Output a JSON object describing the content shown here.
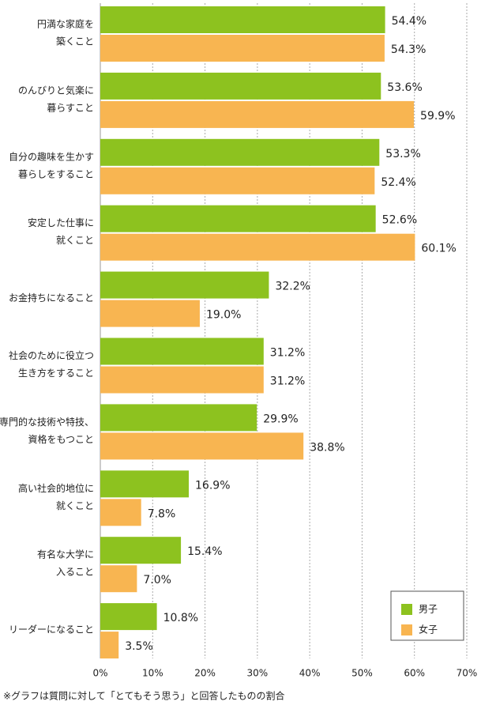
{
  "chart_data": {
    "type": "bar",
    "orientation": "horizontal",
    "categories": [
      [
        "円満な家庭を",
        "築くこと"
      ],
      [
        "のんびりと気楽に",
        "暮らすこと"
      ],
      [
        "自分の趣味を生かす",
        "暮らしをすること"
      ],
      [
        "安定した仕事に",
        "就くこと"
      ],
      [
        "お金持ちになること"
      ],
      [
        "社会のために役立つ",
        "生き方をすること"
      ],
      [
        "専門的な技術や特技、",
        "資格をもつこと"
      ],
      [
        "高い社会的地位に",
        "就くこと"
      ],
      [
        "有名な大学に",
        "入ること"
      ],
      [
        "リーダーになること"
      ]
    ],
    "series": [
      {
        "name": "男子",
        "color": "#8dc21f",
        "values": [
          54.4,
          53.6,
          53.3,
          52.6,
          32.2,
          31.2,
          29.9,
          16.9,
          15.4,
          10.8
        ],
        "value_labels": [
          "54.4%",
          "53.6%",
          "53.3%",
          "52.6%",
          "32.2%",
          "31.2%",
          "29.9%",
          "16.9%",
          "15.4%",
          "10.8%"
        ]
      },
      {
        "name": "女子",
        "color": "#f8b551",
        "values": [
          54.3,
          59.9,
          52.4,
          60.1,
          19.0,
          31.2,
          38.8,
          7.8,
          7.0,
          3.5
        ],
        "value_labels": [
          "54.3%",
          "59.9%",
          "52.4%",
          "60.1%",
          "19.0%",
          "31.2%",
          "38.8%",
          "7.8%",
          "7.0%",
          "3.5%"
        ]
      }
    ],
    "xlim": [
      0,
      70
    ],
    "xticks": [
      {
        "value": 0,
        "label": "0%"
      },
      {
        "value": 10,
        "label": "10%"
      },
      {
        "value": 20,
        "label": "20%"
      },
      {
        "value": 30,
        "label": "30%"
      },
      {
        "value": 40,
        "label": "40%"
      },
      {
        "value": 50,
        "label": "50%"
      },
      {
        "value": 60,
        "label": "60%"
      },
      {
        "value": 70,
        "label": "70%"
      }
    ],
    "grid": true,
    "legend": "lower right",
    "note": "※グラフは質問に対して「とてもそう思う」と回答したものの割合"
  }
}
